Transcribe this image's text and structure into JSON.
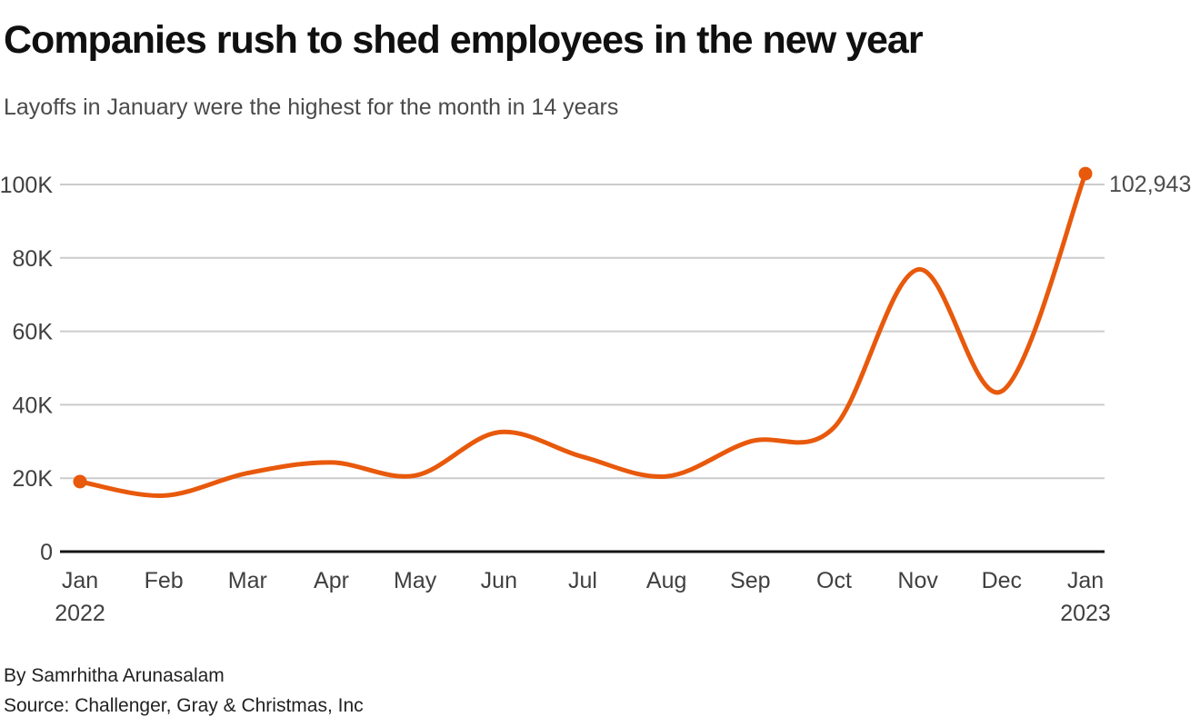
{
  "header": {
    "title": "Companies rush to shed employees in the new year",
    "subtitle": "Layoffs in January were the highest for the month in 14 years"
  },
  "footer": {
    "byline": "By Samrhitha Arunasalam",
    "source": "Source: Challenger, Gray & Christmas, Inc"
  },
  "chart_data": {
    "type": "line",
    "title": "Companies rush to shed employees in the new year",
    "subtitle": "Layoffs in January were the highest for the month in 14 years",
    "categories": [
      {
        "label": "Jan",
        "sublabel": "2022"
      },
      {
        "label": "Feb",
        "sublabel": ""
      },
      {
        "label": "Mar",
        "sublabel": ""
      },
      {
        "label": "Apr",
        "sublabel": ""
      },
      {
        "label": "May",
        "sublabel": ""
      },
      {
        "label": "Jun",
        "sublabel": ""
      },
      {
        "label": "Jul",
        "sublabel": ""
      },
      {
        "label": "Aug",
        "sublabel": ""
      },
      {
        "label": "Sep",
        "sublabel": ""
      },
      {
        "label": "Oct",
        "sublabel": ""
      },
      {
        "label": "Nov",
        "sublabel": ""
      },
      {
        "label": "Dec",
        "sublabel": ""
      },
      {
        "label": "Jan",
        "sublabel": "2023"
      }
    ],
    "values": [
      19064,
      15245,
      21387,
      24286,
      20712,
      32517,
      25810,
      20485,
      29989,
      33843,
      76835,
      43651,
      102943
    ],
    "end_point_label": "102,943",
    "y_ticks": [
      {
        "value": 0,
        "label": "0"
      },
      {
        "value": 20000,
        "label": "20K"
      },
      {
        "value": 40000,
        "label": "40K"
      },
      {
        "value": 60000,
        "label": "60K"
      },
      {
        "value": 80000,
        "label": "80K"
      },
      {
        "value": 100000,
        "label": "100K"
      }
    ],
    "ylim": [
      0,
      100000
    ],
    "xlabel": "",
    "ylabel": "",
    "grid": "horizontal",
    "legend": "none",
    "colors": {
      "line": "#e8590c",
      "marker": "#e8590c",
      "gridline": "#cccccc",
      "axis": "#141414",
      "tick_text": "#404040",
      "annotation_text": "#4d4d4d"
    }
  }
}
